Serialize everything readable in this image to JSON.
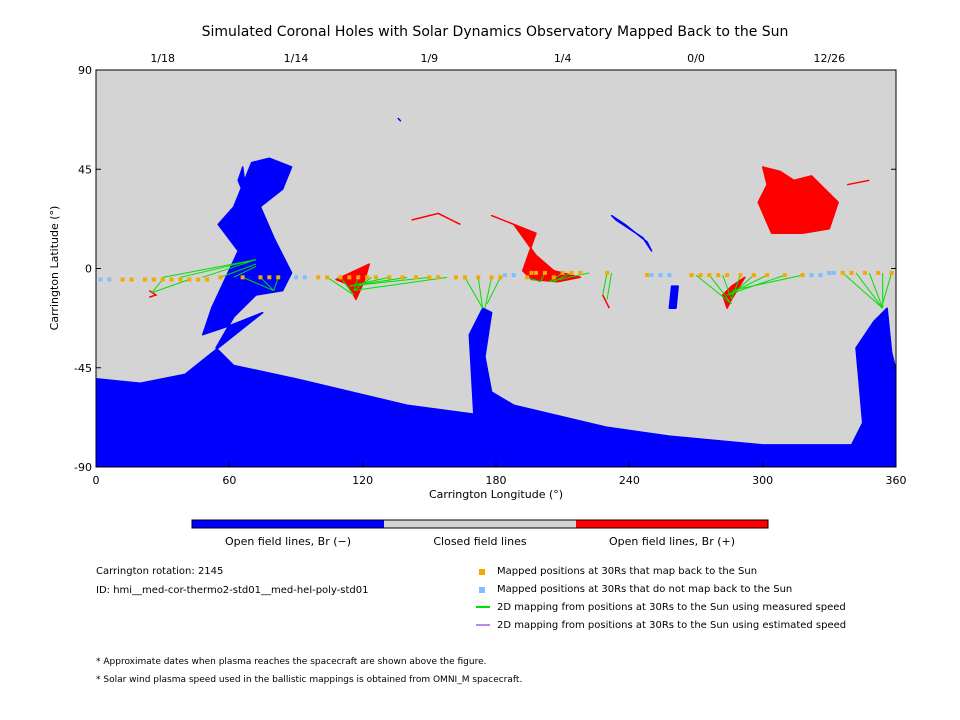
{
  "title": "Simulated Coronal Holes with Solar Dynamics Observatory Mapped Back to the Sun",
  "colors": {
    "open_negative": "#0000ff",
    "closed": "#d4d4d4",
    "open_positive": "#ff0000",
    "mapped": "#f5a800",
    "not_mapped": "#7fbfff",
    "measured_line": "#00e000",
    "estimated_line": "#bb88ee"
  },
  "chart_data": {
    "type": "map",
    "xlabel": "Carrington Longitude (°)",
    "ylabel": "Carrington Latitude (°)",
    "xlim": [
      0,
      360
    ],
    "ylim": [
      -90,
      90
    ],
    "x_ticks": [
      "0",
      "60",
      "120",
      "180",
      "240",
      "300",
      "360"
    ],
    "y_ticks": [
      "90",
      "45",
      "0",
      "-45",
      "-90"
    ],
    "date_ticks": [
      {
        "label": "1/18",
        "lon": 30
      },
      {
        "label": "1/14",
        "lon": 90
      },
      {
        "label": "1/9",
        "lon": 150
      },
      {
        "label": "1/4",
        "lon": 210
      },
      {
        "label": "0/0",
        "lon": 270
      },
      {
        "label": "12/26",
        "lon": 330
      }
    ],
    "colorbar": [
      "Open field lines, Br (−)",
      "Closed field lines",
      "Open field lines, Br (+)"
    ],
    "coronal_holes_negative": [
      [
        [
          0,
          -50
        ],
        [
          20,
          -52
        ],
        [
          40,
          -48
        ],
        [
          50,
          -40
        ],
        [
          60,
          -32
        ],
        [
          70,
          -24
        ],
        [
          75,
          -20
        ],
        [
          60,
          -26
        ],
        [
          48,
          -30
        ],
        [
          52,
          -18
        ],
        [
          64,
          8
        ],
        [
          55,
          20
        ],
        [
          62,
          28
        ],
        [
          70,
          48
        ],
        [
          78,
          50
        ],
        [
          88,
          46
        ],
        [
          84,
          36
        ],
        [
          74,
          28
        ],
        [
          80,
          14
        ],
        [
          88,
          -2
        ],
        [
          84,
          -10
        ],
        [
          72,
          -12
        ],
        [
          62,
          -22
        ],
        [
          54,
          -36
        ],
        [
          62,
          -44
        ],
        [
          90,
          -50
        ],
        [
          140,
          -62
        ],
        [
          170,
          -66
        ],
        [
          168,
          -30
        ],
        [
          174,
          -18
        ],
        [
          178,
          -20
        ],
        [
          175,
          -40
        ],
        [
          178,
          -56
        ],
        [
          188,
          -62
        ],
        [
          230,
          -72
        ],
        [
          258,
          -76
        ],
        [
          300,
          -80
        ],
        [
          340,
          -80
        ],
        [
          345,
          -70
        ],
        [
          342,
          -36
        ],
        [
          350,
          -24
        ],
        [
          356,
          -18
        ],
        [
          358,
          -38
        ],
        [
          360,
          -46
        ],
        [
          360,
          -90
        ],
        [
          0,
          -90
        ]
      ],
      [
        [
          64,
          40
        ],
        [
          66,
          46
        ],
        [
          68,
          30
        ]
      ],
      [
        [
          232,
          24
        ],
        [
          238,
          20
        ],
        [
          248,
          12
        ],
        [
          250,
          8
        ],
        [
          246,
          14
        ],
        [
          234,
          22
        ]
      ],
      [
        [
          259,
          -8
        ],
        [
          262,
          -8
        ],
        [
          261,
          -18
        ],
        [
          258,
          -18
        ]
      ],
      [
        [
          136,
          68
        ],
        [
          137,
          67
        ]
      ]
    ],
    "coronal_holes_positive": [
      [
        [
          192,
          -1
        ],
        [
          198,
          16
        ],
        [
          178,
          24
        ],
        [
          188,
          20
        ],
        [
          198,
          6
        ],
        [
          206,
          -1
        ],
        [
          218,
          -4
        ],
        [
          208,
          -6
        ],
        [
          196,
          -5
        ]
      ],
      [
        [
          300,
          46
        ],
        [
          308,
          44
        ],
        [
          314,
          40
        ],
        [
          322,
          42
        ],
        [
          334,
          30
        ],
        [
          330,
          18
        ],
        [
          318,
          16
        ],
        [
          304,
          16
        ],
        [
          298,
          30
        ],
        [
          302,
          38
        ]
      ],
      [
        [
          123,
          2
        ],
        [
          121,
          -5
        ],
        [
          117,
          -14
        ],
        [
          113,
          -7
        ],
        [
          108,
          -5
        ]
      ],
      [
        [
          286,
          -8
        ],
        [
          292,
          -4
        ],
        [
          286,
          -14
        ],
        [
          284,
          -18
        ],
        [
          282,
          -12
        ]
      ],
      [
        [
          142,
          22
        ],
        [
          154,
          25
        ],
        [
          164,
          20
        ]
      ],
      [
        [
          24,
          -10
        ],
        [
          27,
          -12
        ],
        [
          24,
          -13
        ]
      ],
      [
        [
          228,
          -12
        ],
        [
          231,
          -18
        ]
      ],
      [
        [
          338,
          38
        ],
        [
          348,
          40
        ]
      ]
    ],
    "mapped_points": [
      [
        12,
        -5
      ],
      [
        16,
        -5
      ],
      [
        22,
        -5
      ],
      [
        26,
        -5
      ],
      [
        30,
        -5
      ],
      [
        34,
        -5
      ],
      [
        38,
        -5
      ],
      [
        42,
        -5
      ],
      [
        46,
        -5
      ],
      [
        50,
        -5
      ],
      [
        56,
        -4
      ],
      [
        66,
        -4
      ],
      [
        74,
        -4
      ],
      [
        78,
        -4
      ],
      [
        82,
        -4
      ],
      [
        100,
        -4
      ],
      [
        104,
        -4
      ],
      [
        110,
        -4
      ],
      [
        114,
        -4
      ],
      [
        118,
        -4
      ],
      [
        122,
        -4
      ],
      [
        126,
        -4
      ],
      [
        132,
        -4
      ],
      [
        138,
        -4
      ],
      [
        144,
        -4
      ],
      [
        150,
        -4
      ],
      [
        154,
        -4
      ],
      [
        162,
        -4
      ],
      [
        166,
        -4
      ],
      [
        172,
        -4
      ],
      [
        178,
        -4
      ],
      [
        182,
        -4
      ],
      [
        194,
        -4
      ],
      [
        196,
        -2
      ],
      [
        198,
        -2
      ],
      [
        202,
        -2
      ],
      [
        206,
        -4
      ],
      [
        210,
        -2
      ],
      [
        214,
        -2
      ],
      [
        218,
        -2
      ],
      [
        230,
        -2
      ],
      [
        248,
        -3
      ],
      [
        268,
        -3
      ],
      [
        272,
        -3
      ],
      [
        276,
        -3
      ],
      [
        280,
        -3
      ],
      [
        284,
        -3
      ],
      [
        290,
        -3
      ],
      [
        296,
        -3
      ],
      [
        302,
        -3
      ],
      [
        310,
        -3
      ],
      [
        318,
        -3
      ],
      [
        336,
        -2
      ],
      [
        340,
        -2
      ],
      [
        346,
        -2
      ],
      [
        352,
        -2
      ],
      [
        358,
        -2
      ]
    ],
    "not_mapped_points": [
      [
        2,
        -5
      ],
      [
        6,
        -5
      ],
      [
        90,
        -4
      ],
      [
        94,
        -4
      ],
      [
        184,
        -3
      ],
      [
        188,
        -3
      ],
      [
        250,
        -3
      ],
      [
        254,
        -3
      ],
      [
        258,
        -3
      ],
      [
        322,
        -3
      ],
      [
        326,
        -3
      ],
      [
        330,
        -2
      ],
      [
        332,
        -2
      ]
    ],
    "mapping_lines": [
      [
        [
          30,
          -5
        ],
        [
          25,
          -11
        ]
      ],
      [
        [
          42,
          -5
        ],
        [
          25,
          -11
        ]
      ],
      [
        [
          30,
          -4
        ],
        [
          72,
          4
        ]
      ],
      [
        [
          38,
          -4
        ],
        [
          72,
          4
        ]
      ],
      [
        [
          48,
          -4
        ],
        [
          72,
          4
        ]
      ],
      [
        [
          56,
          -4
        ],
        [
          72,
          2
        ]
      ],
      [
        [
          62,
          -4
        ],
        [
          72,
          1
        ]
      ],
      [
        [
          66,
          -4
        ],
        [
          80,
          -10
        ]
      ],
      [
        [
          74,
          -4
        ],
        [
          80,
          -10
        ]
      ],
      [
        [
          82,
          -4
        ],
        [
          80,
          -10
        ]
      ],
      [
        [
          104,
          -4
        ],
        [
          116,
          -12
        ]
      ],
      [
        [
          110,
          -4
        ],
        [
          116,
          -12
        ]
      ],
      [
        [
          118,
          -4
        ],
        [
          116,
          -10
        ]
      ],
      [
        [
          124,
          -4
        ],
        [
          116,
          -10
        ]
      ],
      [
        [
          132,
          -4
        ],
        [
          114,
          -8
        ]
      ],
      [
        [
          140,
          -4
        ],
        [
          114,
          -8
        ]
      ],
      [
        [
          150,
          -4
        ],
        [
          114,
          -8
        ]
      ],
      [
        [
          158,
          -4
        ],
        [
          116,
          -10
        ]
      ],
      [
        [
          166,
          -4
        ],
        [
          174,
          -18
        ]
      ],
      [
        [
          172,
          -4
        ],
        [
          174,
          -18
        ]
      ],
      [
        [
          178,
          -4
        ],
        [
          175,
          -18
        ]
      ],
      [
        [
          182,
          -4
        ],
        [
          176,
          -16
        ]
      ],
      [
        [
          194,
          -4
        ],
        [
          200,
          -6
        ]
      ],
      [
        [
          202,
          -2
        ],
        [
          200,
          -6
        ]
      ],
      [
        [
          210,
          -2
        ],
        [
          204,
          -6
        ]
      ],
      [
        [
          214,
          -2
        ],
        [
          206,
          -6
        ]
      ],
      [
        [
          222,
          -2
        ],
        [
          204,
          -6
        ]
      ],
      [
        [
          230,
          -2
        ],
        [
          228,
          -12
        ]
      ],
      [
        [
          232,
          -2
        ],
        [
          230,
          -14
        ]
      ],
      [
        [
          270,
          -3
        ],
        [
          286,
          -16
        ]
      ],
      [
        [
          276,
          -3
        ],
        [
          286,
          -16
        ]
      ],
      [
        [
          282,
          -3
        ],
        [
          286,
          -14
        ]
      ],
      [
        [
          290,
          -3
        ],
        [
          286,
          -14
        ]
      ],
      [
        [
          296,
          -3
        ],
        [
          286,
          -12
        ]
      ],
      [
        [
          302,
          -3
        ],
        [
          284,
          -12
        ]
      ],
      [
        [
          310,
          -3
        ],
        [
          284,
          -12
        ]
      ],
      [
        [
          318,
          -3
        ],
        [
          286,
          -10
        ]
      ],
      [
        [
          336,
          -2
        ],
        [
          354,
          -18
        ]
      ],
      [
        [
          342,
          -2
        ],
        [
          354,
          -18
        ]
      ],
      [
        [
          348,
          -2
        ],
        [
          354,
          -18
        ]
      ],
      [
        [
          354,
          -2
        ],
        [
          354,
          -18
        ]
      ],
      [
        [
          358,
          -2
        ],
        [
          354,
          -16
        ]
      ]
    ]
  },
  "info": {
    "rotation": "Carrington rotation: 2145",
    "id": "ID: hmi__med-cor-thermo2-std01__med-hel-poly-std01"
  },
  "legend": [
    "Mapped positions at 30Rs that map back to the Sun",
    "Mapped positions at 30Rs that do not map back to the Sun",
    "2D mapping from positions at 30Rs to the Sun using measured speed",
    "2D mapping from positions at 30Rs to the Sun using estimated speed"
  ],
  "notes": [
    "* Approximate dates when plasma reaches the spacecraft are shown above the figure.",
    "* Solar wind plasma speed used in the ballistic mappings is obtained from OMNI_M spacecraft."
  ]
}
